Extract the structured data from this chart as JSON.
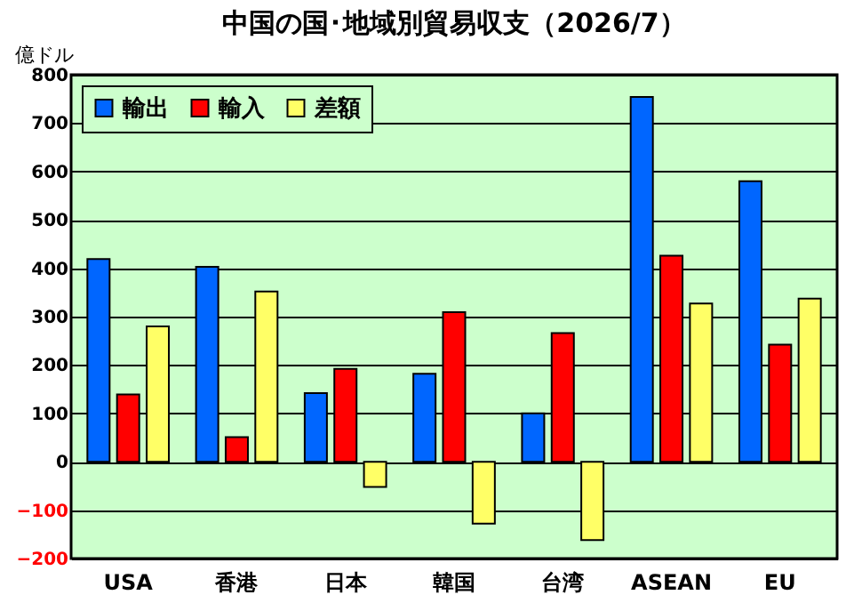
{
  "chart_data": {
    "type": "bar",
    "title": "中国の国･地域別貿易収支（2026/7）",
    "ylabel": "億ドル",
    "categories": [
      "USA",
      "香港",
      "日本",
      "韓国",
      "台湾",
      "ASEAN",
      "EU"
    ],
    "series": [
      {
        "name": "輸出",
        "color": "#0066ff",
        "values": [
          419,
          403,
          142,
          182,
          100,
          754,
          580
        ]
      },
      {
        "name": "輸入",
        "color": "#ff0000",
        "values": [
          139,
          51,
          192,
          309,
          266,
          426,
          242
        ]
      },
      {
        "name": "差額",
        "color": "#ffff66",
        "values": [
          280,
          352,
          -52,
          -128,
          -162,
          327,
          337
        ]
      }
    ],
    "ylim": [
      -200,
      800
    ],
    "yticks": [
      -200,
      -100,
      0,
      100,
      200,
      300,
      400,
      500,
      600,
      700,
      800
    ],
    "grid": "y",
    "legend": "top left"
  }
}
